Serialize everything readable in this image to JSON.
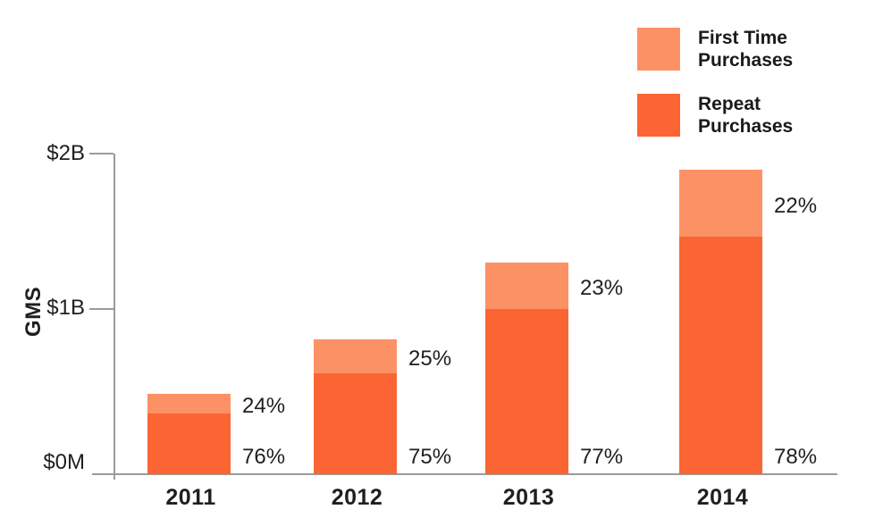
{
  "chart_data": {
    "type": "bar",
    "stacked": true,
    "title": "",
    "ylabel": "GMS",
    "xlabel": "",
    "units": "USD billions",
    "grid": false,
    "legend_position": "top-right",
    "categories": [
      "2011",
      "2012",
      "2013",
      "2014"
    ],
    "series": [
      {
        "name": "Repeat Purchases",
        "color": "#fb6533",
        "values": [
          0.38,
          0.63,
          1.03,
          1.48
        ],
        "percent_labels": [
          "76%",
          "75%",
          "77%",
          "78%"
        ]
      },
      {
        "name": "First Time Purchases",
        "color": "#fd9166",
        "values": [
          0.12,
          0.21,
          0.29,
          0.42
        ],
        "percent_labels": [
          "24%",
          "25%",
          "23%",
          "22%"
        ]
      }
    ],
    "totals": [
      0.5,
      0.84,
      1.32,
      1.9
    ],
    "y_axis": {
      "min": 0,
      "max": 2,
      "ticks": [
        {
          "label": "$0M",
          "value": 0
        },
        {
          "label": "$1B",
          "value": 1
        },
        {
          "label": "$2B",
          "value": 2
        }
      ]
    },
    "legend": [
      {
        "label": "First Time Purchases",
        "color": "#fd9166"
      },
      {
        "label": "Repeat Purchases",
        "color": "#fb6533"
      }
    ]
  },
  "colors": {
    "background": "#ffffff",
    "axis": "#9b9b9b",
    "text": "#1f1f1f",
    "first_time": "#fd9166",
    "repeat": "#fb6533"
  }
}
